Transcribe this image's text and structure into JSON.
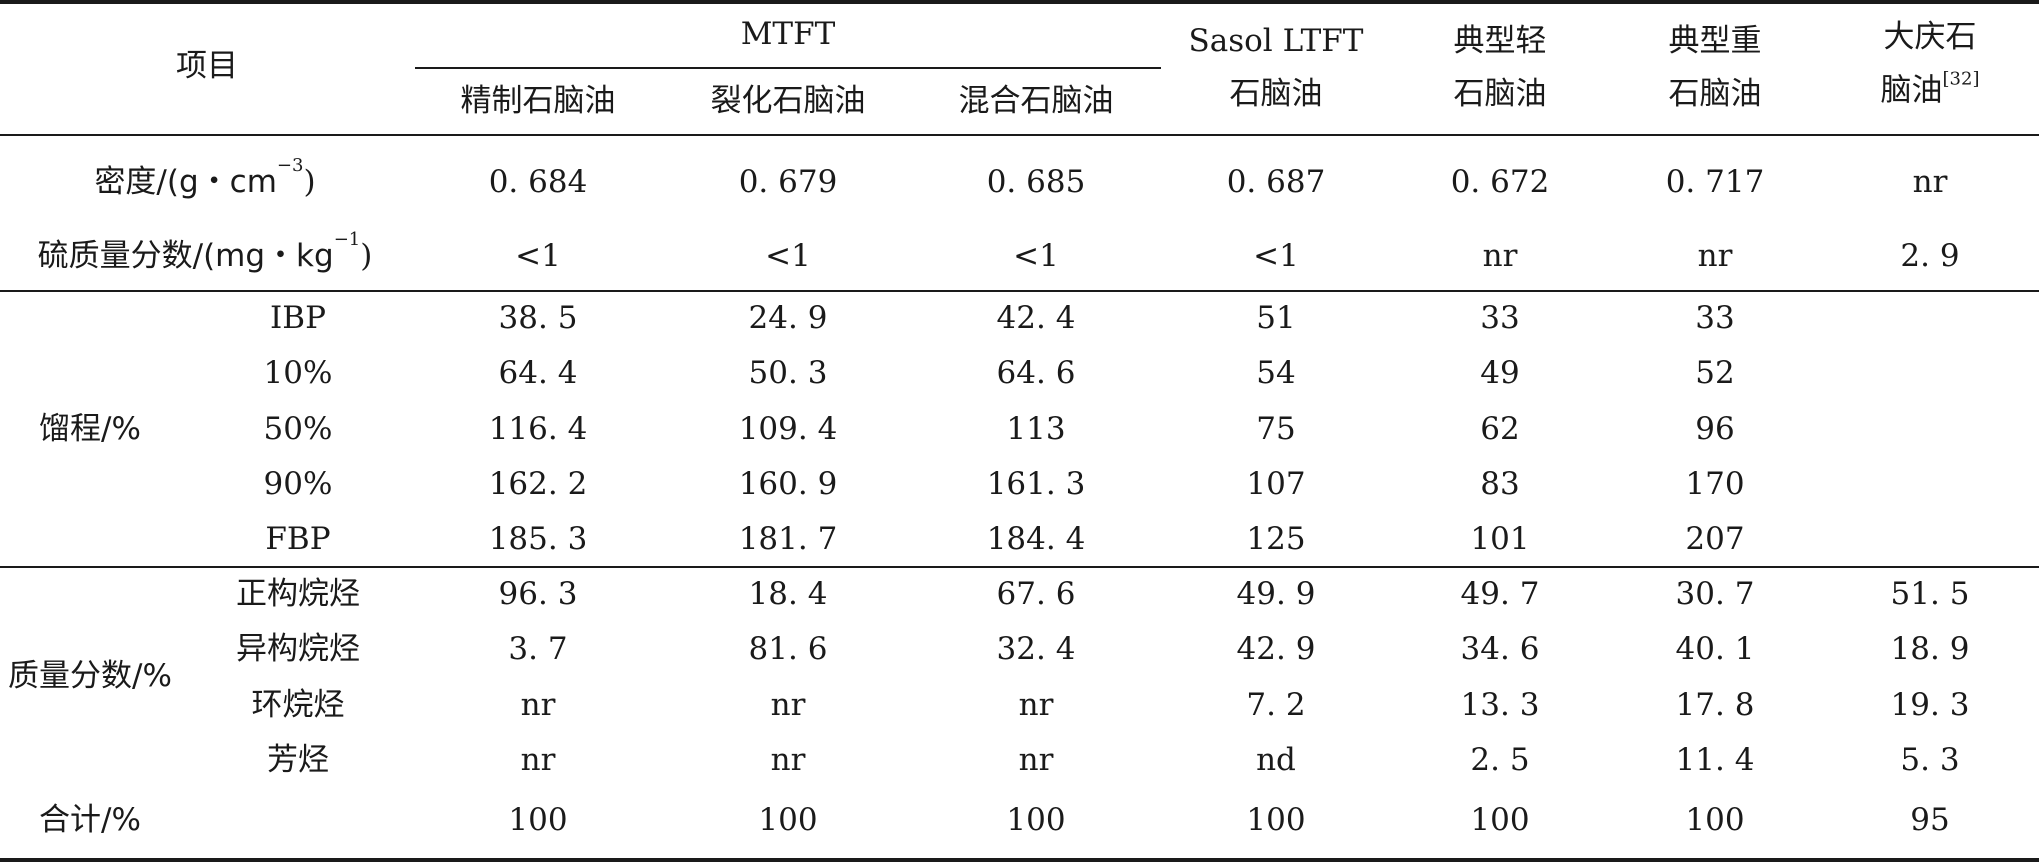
{
  "header": {
    "item": "项目",
    "mtft": "MTFT",
    "mtft_sub": [
      "精制石脑油",
      "裂化石脑油",
      "混合石脑油"
    ],
    "sasol": [
      "Sasol LTFT",
      "石脑油"
    ],
    "light": [
      "典型轻",
      "石脑油"
    ],
    "heavy": [
      "典型重",
      "石脑油"
    ],
    "daqing": [
      "大庆石",
      "脑油"
    ],
    "daqing_ref": "[32]"
  },
  "rows": {
    "density": {
      "label_main": "密度/(g・cm",
      "label_sup": "−3",
      "label_end": ")",
      "values": [
        "0. 684",
        "0. 679",
        "0. 685",
        "0. 687",
        "0. 672",
        "0. 717",
        "nr"
      ]
    },
    "sulfur": {
      "label_main": "硫质量分数/(mg・kg",
      "label_sup": "−1",
      "label_end": ")",
      "values": [
        "<1",
        "<1",
        "<1",
        "<1",
        "nr",
        "nr",
        "2. 9"
      ]
    }
  },
  "distillation": {
    "label": "馏程/%",
    "rows": [
      {
        "name": "IBP",
        "values": [
          "38. 5",
          "24. 9",
          "42. 4",
          "51",
          "33",
          "33",
          ""
        ]
      },
      {
        "name": "10%",
        "values": [
          "64. 4",
          "50. 3",
          "64. 6",
          "54",
          "49",
          "52",
          ""
        ]
      },
      {
        "name": "50%",
        "values": [
          "116. 4",
          "109. 4",
          "113",
          "75",
          "62",
          "96",
          ""
        ]
      },
      {
        "name": "90%",
        "values": [
          "162. 2",
          "160. 9",
          "161. 3",
          "107",
          "83",
          "170",
          ""
        ]
      },
      {
        "name": "FBP",
        "values": [
          "185. 3",
          "181. 7",
          "184. 4",
          "125",
          "101",
          "207",
          ""
        ]
      }
    ]
  },
  "composition": {
    "label": "质量分数/%",
    "rows": [
      {
        "name": "正构烷烃",
        "values": [
          "96. 3",
          "18. 4",
          "67. 6",
          "49. 9",
          "49. 7",
          "30. 7",
          "51. 5"
        ]
      },
      {
        "name": "异构烷烃",
        "values": [
          "3. 7",
          "81. 6",
          "32. 4",
          "42. 9",
          "34. 6",
          "40. 1",
          "18. 9"
        ]
      },
      {
        "name": "环烷烃",
        "values": [
          "nr",
          "nr",
          "nr",
          "7. 2",
          "13. 3",
          "17. 8",
          "19. 3"
        ]
      },
      {
        "name": "芳烃",
        "values": [
          "nr",
          "nr",
          "nr",
          "nd",
          "2. 5",
          "11. 4",
          "5. 3"
        ]
      }
    ]
  },
  "total": {
    "label": "合计/%",
    "values": [
      "100",
      "100",
      "100",
      "100",
      "100",
      "100",
      "95"
    ]
  }
}
